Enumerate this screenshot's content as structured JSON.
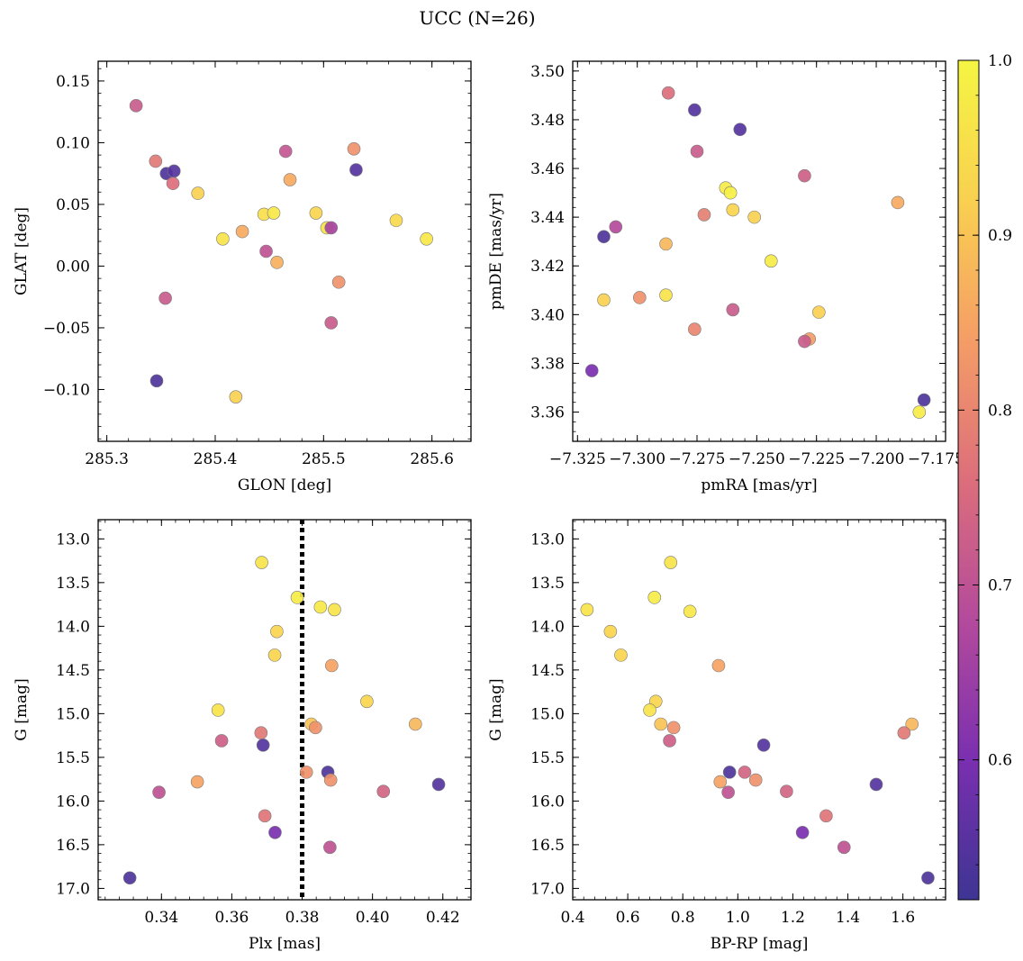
{
  "figure": {
    "title": "UCC (N=26)"
  },
  "colorbar": {
    "min": 0.52,
    "max": 1.0,
    "ticks": [
      "0.6",
      "0.7",
      "0.8",
      "0.9",
      "1.0"
    ],
    "tick_values": [
      0.6,
      0.7,
      0.8,
      0.9,
      1.0
    ],
    "colormap": "plasma",
    "stops": [
      "#3e3593",
      "#7a2fb0",
      "#b44a9c",
      "#dc6e7b",
      "#f59d66",
      "#f9d050",
      "#f5f543"
    ]
  },
  "chart_data": [
    {
      "type": "scatter",
      "title": "",
      "xlabel": "GLON [deg]",
      "ylabel": "GLAT [deg]",
      "xlim": [
        285.292,
        285.636
      ],
      "ylim": [
        -0.142,
        0.166
      ],
      "x_ticks": [
        285.3,
        285.4,
        285.5,
        285.6
      ],
      "x_tick_labels": [
        "285.3",
        "285.4",
        "285.5",
        "285.6"
      ],
      "y_ticks": [
        -0.1,
        -0.05,
        0.0,
        0.05,
        0.1,
        0.15
      ],
      "y_tick_labels": [
        "−0.10",
        "−0.05",
        "0.00",
        "0.05",
        "0.10",
        "0.15"
      ],
      "points": [
        {
          "x": 285.327,
          "y": 0.13,
          "c": 0.72
        },
        {
          "x": 285.345,
          "y": 0.085,
          "c": 0.78
        },
        {
          "x": 285.355,
          "y": 0.075,
          "c": 0.54
        },
        {
          "x": 285.362,
          "y": 0.077,
          "c": 0.55
        },
        {
          "x": 285.361,
          "y": 0.067,
          "c": 0.76
        },
        {
          "x": 285.384,
          "y": 0.059,
          "c": 0.92
        },
        {
          "x": 285.407,
          "y": 0.022,
          "c": 0.96
        },
        {
          "x": 285.425,
          "y": 0.028,
          "c": 0.86
        },
        {
          "x": 285.445,
          "y": 0.042,
          "c": 0.95
        },
        {
          "x": 285.454,
          "y": 0.043,
          "c": 0.97
        },
        {
          "x": 285.447,
          "y": 0.012,
          "c": 0.7
        },
        {
          "x": 285.457,
          "y": 0.003,
          "c": 0.87
        },
        {
          "x": 285.465,
          "y": 0.093,
          "c": 0.71
        },
        {
          "x": 285.469,
          "y": 0.07,
          "c": 0.86
        },
        {
          "x": 285.493,
          "y": 0.043,
          "c": 0.93
        },
        {
          "x": 285.503,
          "y": 0.031,
          "c": 0.96
        },
        {
          "x": 285.507,
          "y": 0.031,
          "c": 0.66
        },
        {
          "x": 285.528,
          "y": 0.095,
          "c": 0.82
        },
        {
          "x": 285.53,
          "y": 0.078,
          "c": 0.55
        },
        {
          "x": 285.514,
          "y": -0.013,
          "c": 0.82
        },
        {
          "x": 285.507,
          "y": -0.046,
          "c": 0.72
        },
        {
          "x": 285.354,
          "y": -0.026,
          "c": 0.72
        },
        {
          "x": 285.346,
          "y": -0.093,
          "c": 0.54
        },
        {
          "x": 285.419,
          "y": -0.106,
          "c": 0.92
        },
        {
          "x": 285.567,
          "y": 0.037,
          "c": 0.94
        },
        {
          "x": 285.595,
          "y": 0.022,
          "c": 0.97
        }
      ]
    },
    {
      "type": "scatter",
      "title": "",
      "xlabel": "pmRA [mas/yr]",
      "ylabel": "pmDE [mas/yr]",
      "xlim": [
        -7.327,
        -7.171
      ],
      "ylim": [
        3.348,
        3.504
      ],
      "x_ticks": [
        -7.325,
        -7.3,
        -7.275,
        -7.25,
        -7.225,
        -7.2,
        -7.175
      ],
      "x_tick_labels": [
        "−7.325",
        "−7.300",
        "−7.275",
        "−7.250",
        "−7.225",
        "−7.200",
        "−7.175"
      ],
      "y_ticks": [
        3.36,
        3.38,
        3.4,
        3.42,
        3.44,
        3.46,
        3.48,
        3.5
      ],
      "y_tick_labels": [
        "3.36",
        "3.38",
        "3.40",
        "3.42",
        "3.44",
        "3.46",
        "3.48",
        "3.50"
      ],
      "points": [
        {
          "x": -7.287,
          "y": 3.491,
          "c": 0.76
        },
        {
          "x": -7.276,
          "y": 3.484,
          "c": 0.55
        },
        {
          "x": -7.257,
          "y": 3.476,
          "c": 0.55
        },
        {
          "x": -7.275,
          "y": 3.467,
          "c": 0.72
        },
        {
          "x": -7.23,
          "y": 3.457,
          "c": 0.73
        },
        {
          "x": -7.263,
          "y": 3.452,
          "c": 0.98
        },
        {
          "x": -7.261,
          "y": 3.45,
          "c": 0.99
        },
        {
          "x": -7.26,
          "y": 3.443,
          "c": 0.93
        },
        {
          "x": -7.272,
          "y": 3.441,
          "c": 0.79
        },
        {
          "x": -7.251,
          "y": 3.44,
          "c": 0.92
        },
        {
          "x": -7.309,
          "y": 3.436,
          "c": 0.68
        },
        {
          "x": -7.314,
          "y": 3.432,
          "c": 0.54
        },
        {
          "x": -7.288,
          "y": 3.429,
          "c": 0.88
        },
        {
          "x": -7.191,
          "y": 3.446,
          "c": 0.86
        },
        {
          "x": -7.244,
          "y": 3.422,
          "c": 0.98
        },
        {
          "x": -7.288,
          "y": 3.408,
          "c": 0.96
        },
        {
          "x": -7.299,
          "y": 3.407,
          "c": 0.82
        },
        {
          "x": -7.314,
          "y": 3.406,
          "c": 0.92
        },
        {
          "x": -7.26,
          "y": 3.402,
          "c": 0.72
        },
        {
          "x": -7.276,
          "y": 3.394,
          "c": 0.8
        },
        {
          "x": -7.224,
          "y": 3.401,
          "c": 0.92
        },
        {
          "x": -7.228,
          "y": 3.39,
          "c": 0.84
        },
        {
          "x": -7.23,
          "y": 3.389,
          "c": 0.72
        },
        {
          "x": -7.319,
          "y": 3.377,
          "c": 0.6
        },
        {
          "x": -7.18,
          "y": 3.365,
          "c": 0.54
        },
        {
          "x": -7.182,
          "y": 3.36,
          "c": 0.98
        }
      ]
    },
    {
      "type": "scatter",
      "title": "",
      "xlabel": "Plx [mas]",
      "ylabel": "G [mag]",
      "xlim": [
        0.322,
        0.428
      ],
      "ylim": [
        17.13,
        12.78
      ],
      "y_inverted": true,
      "x_ticks": [
        0.34,
        0.36,
        0.38,
        0.4,
        0.42
      ],
      "x_tick_labels": [
        "0.34",
        "0.36",
        "0.38",
        "0.40",
        "0.42"
      ],
      "y_ticks": [
        13.0,
        13.5,
        14.0,
        14.5,
        15.0,
        15.5,
        16.0,
        16.5,
        17.0
      ],
      "y_tick_labels": [
        "13.0",
        "13.5",
        "14.0",
        "14.5",
        "15.0",
        "15.5",
        "16.0",
        "16.5",
        "17.0"
      ],
      "vline": {
        "x": 0.38,
        "style": "dotted"
      },
      "points": [
        {
          "x": 0.3685,
          "y": 13.27,
          "c": 0.96
        },
        {
          "x": 0.3786,
          "y": 13.67,
          "c": 0.98
        },
        {
          "x": 0.3852,
          "y": 13.78,
          "c": 0.97
        },
        {
          "x": 0.3892,
          "y": 13.81,
          "c": 0.96
        },
        {
          "x": 0.3728,
          "y": 14.06,
          "c": 0.93
        },
        {
          "x": 0.3722,
          "y": 14.33,
          "c": 0.93
        },
        {
          "x": 0.3884,
          "y": 14.45,
          "c": 0.85
        },
        {
          "x": 0.3984,
          "y": 14.86,
          "c": 0.93
        },
        {
          "x": 0.3561,
          "y": 14.96,
          "c": 0.96
        },
        {
          "x": 0.3826,
          "y": 15.12,
          "c": 0.9
        },
        {
          "x": 0.3838,
          "y": 15.16,
          "c": 0.82
        },
        {
          "x": 0.4122,
          "y": 15.12,
          "c": 0.88
        },
        {
          "x": 0.3683,
          "y": 15.22,
          "c": 0.78
        },
        {
          "x": 0.3571,
          "y": 15.31,
          "c": 0.73
        },
        {
          "x": 0.3689,
          "y": 15.36,
          "c": 0.55
        },
        {
          "x": 0.3812,
          "y": 15.67,
          "c": 0.82
        },
        {
          "x": 0.3873,
          "y": 15.67,
          "c": 0.54
        },
        {
          "x": 0.3881,
          "y": 15.76,
          "c": 0.82
        },
        {
          "x": 0.3502,
          "y": 15.78,
          "c": 0.85
        },
        {
          "x": 0.4188,
          "y": 15.81,
          "c": 0.55
        },
        {
          "x": 0.3393,
          "y": 15.9,
          "c": 0.7
        },
        {
          "x": 0.4031,
          "y": 15.89,
          "c": 0.74
        },
        {
          "x": 0.3694,
          "y": 16.17,
          "c": 0.77
        },
        {
          "x": 0.3723,
          "y": 16.36,
          "c": 0.6
        },
        {
          "x": 0.3879,
          "y": 16.53,
          "c": 0.7
        },
        {
          "x": 0.331,
          "y": 16.88,
          "c": 0.54
        }
      ]
    },
    {
      "type": "scatter",
      "title": "",
      "xlabel": "BP-RP [mag]",
      "ylabel": "G [mag]",
      "xlim": [
        0.4,
        1.755
      ],
      "ylim": [
        17.13,
        12.78
      ],
      "y_inverted": true,
      "x_ticks": [
        0.4,
        0.6,
        0.8,
        1.0,
        1.2,
        1.4,
        1.6
      ],
      "x_tick_labels": [
        "0.4",
        "0.6",
        "0.8",
        "1.0",
        "1.2",
        "1.4",
        "1.6"
      ],
      "y_ticks": [
        13.0,
        13.5,
        14.0,
        14.5,
        15.0,
        15.5,
        16.0,
        16.5,
        17.0
      ],
      "y_tick_labels": [
        "13.0",
        "13.5",
        "14.0",
        "14.5",
        "15.0",
        "15.5",
        "16.0",
        "16.5",
        "17.0"
      ],
      "points": [
        {
          "x": 0.756,
          "y": 13.27,
          "c": 0.96
        },
        {
          "x": 0.697,
          "y": 13.67,
          "c": 0.98
        },
        {
          "x": 0.452,
          "y": 13.81,
          "c": 0.96
        },
        {
          "x": 0.826,
          "y": 13.83,
          "c": 0.97
        },
        {
          "x": 0.537,
          "y": 14.06,
          "c": 0.93
        },
        {
          "x": 0.575,
          "y": 14.33,
          "c": 0.93
        },
        {
          "x": 0.93,
          "y": 14.45,
          "c": 0.85
        },
        {
          "x": 0.702,
          "y": 14.86,
          "c": 0.93
        },
        {
          "x": 0.68,
          "y": 14.96,
          "c": 0.96
        },
        {
          "x": 0.72,
          "y": 15.12,
          "c": 0.9
        },
        {
          "x": 0.767,
          "y": 15.16,
          "c": 0.82
        },
        {
          "x": 1.633,
          "y": 15.12,
          "c": 0.88
        },
        {
          "x": 1.604,
          "y": 15.22,
          "c": 0.78
        },
        {
          "x": 0.752,
          "y": 15.31,
          "c": 0.73
        },
        {
          "x": 1.094,
          "y": 15.36,
          "c": 0.55
        },
        {
          "x": 0.97,
          "y": 15.67,
          "c": 0.54
        },
        {
          "x": 1.025,
          "y": 15.67,
          "c": 0.74
        },
        {
          "x": 1.065,
          "y": 15.76,
          "c": 0.82
        },
        {
          "x": 0.936,
          "y": 15.78,
          "c": 0.85
        },
        {
          "x": 1.503,
          "y": 15.81,
          "c": 0.55
        },
        {
          "x": 0.965,
          "y": 15.9,
          "c": 0.7
        },
        {
          "x": 1.177,
          "y": 15.89,
          "c": 0.74
        },
        {
          "x": 1.321,
          "y": 16.17,
          "c": 0.77
        },
        {
          "x": 1.235,
          "y": 16.36,
          "c": 0.6
        },
        {
          "x": 1.386,
          "y": 16.53,
          "c": 0.7
        },
        {
          "x": 1.691,
          "y": 16.88,
          "c": 0.54
        }
      ]
    }
  ]
}
